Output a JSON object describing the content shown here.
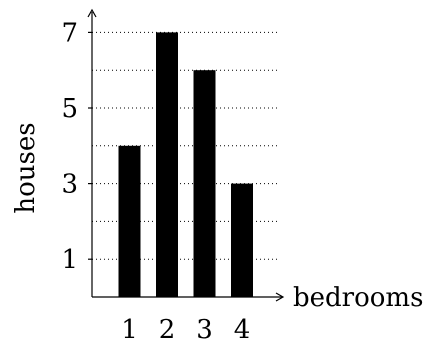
{
  "chart_data": {
    "type": "bar",
    "categories": [
      "1",
      "2",
      "3",
      "4"
    ],
    "values": [
      4,
      7,
      6,
      3
    ],
    "xlabel": "bedrooms",
    "ylabel": "houses",
    "ylim": [
      0,
      7
    ],
    "yticks": [
      1,
      3,
      5,
      7
    ],
    "grid": true,
    "grid_style": "dotted",
    "colors": {
      "bar": "#000000",
      "axis": "#000000",
      "grid": "#000000"
    }
  }
}
